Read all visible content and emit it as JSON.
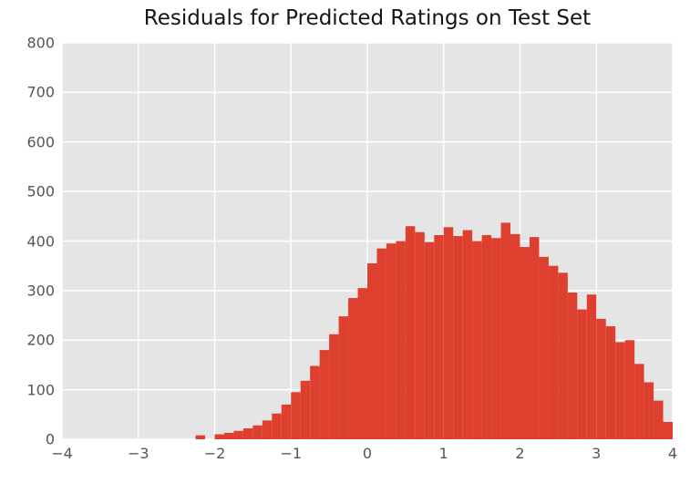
{
  "colors": {
    "bar": "#dd402f",
    "plot_bg": "#e5e5e5",
    "grid": "#ffffff",
    "tick_label": "#555555",
    "title": "#151515",
    "figure_bg": "#ffffff"
  },
  "chart_data": {
    "type": "bar",
    "subtype": "histogram",
    "title": "Residuals for Predicted Ratings on Test Set",
    "xlabel": "",
    "ylabel": "",
    "xlim": [
      -4,
      4
    ],
    "ylim": [
      0,
      800
    ],
    "x_ticks": [
      -4,
      -3,
      -2,
      -1,
      0,
      1,
      2,
      3,
      4
    ],
    "y_ticks": [
      0,
      100,
      200,
      300,
      400,
      500,
      600,
      700,
      800
    ],
    "grid": true,
    "legend": "none",
    "style": "ggplot",
    "bin_start": -2.25,
    "bin_width": 0.125,
    "counts": [
      8,
      0,
      10,
      13,
      17,
      22,
      28,
      38,
      52,
      70,
      95,
      118,
      148,
      180,
      212,
      248,
      285,
      305,
      355,
      385,
      395,
      400,
      430,
      418,
      398,
      412,
      428,
      410,
      422,
      400,
      412,
      406,
      437,
      414,
      388,
      408,
      368,
      350,
      336,
      296,
      262,
      292,
      243,
      228,
      196,
      200,
      152,
      115,
      78,
      35
    ]
  }
}
